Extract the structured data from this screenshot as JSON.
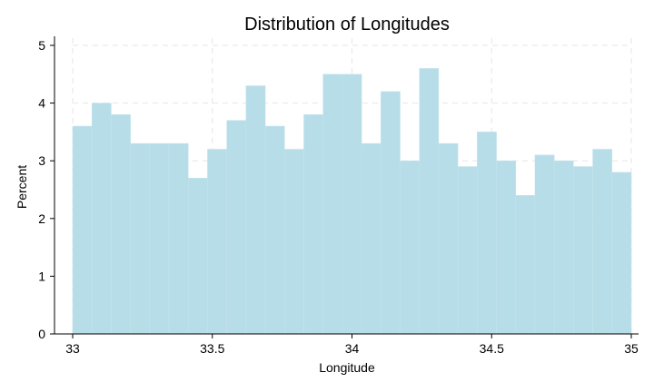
{
  "chart_data": {
    "type": "bar",
    "title": "Distribution of Longitudes",
    "xlabel": "Longitude",
    "ylabel": "Percent",
    "xlim": [
      33,
      35
    ],
    "ylim": [
      0,
      5
    ],
    "x_ticks": [
      {
        "value": 33,
        "label": "33"
      },
      {
        "value": 33.5,
        "label": "33.5"
      },
      {
        "value": 34,
        "label": "34"
      },
      {
        "value": 34.5,
        "label": "34.5"
      },
      {
        "value": 35,
        "label": "35"
      }
    ],
    "y_ticks": [
      {
        "value": 0,
        "label": "0"
      },
      {
        "value": 1,
        "label": "1"
      },
      {
        "value": 2,
        "label": "2"
      },
      {
        "value": 3,
        "label": "3"
      },
      {
        "value": 4,
        "label": "4"
      },
      {
        "value": 5,
        "label": "5"
      }
    ],
    "grid": true,
    "bar_color": "#b7dde8",
    "bin_start": 33,
    "bin_width": 0.0689655,
    "values": [
      3.6,
      4.0,
      3.8,
      3.3,
      3.3,
      3.3,
      2.7,
      3.2,
      3.7,
      4.3,
      3.6,
      3.2,
      3.8,
      4.5,
      4.5,
      3.3,
      4.2,
      3.0,
      4.6,
      3.3,
      2.9,
      3.5,
      3.0,
      2.4,
      3.1,
      3.0,
      2.9,
      3.2,
      2.8
    ]
  }
}
